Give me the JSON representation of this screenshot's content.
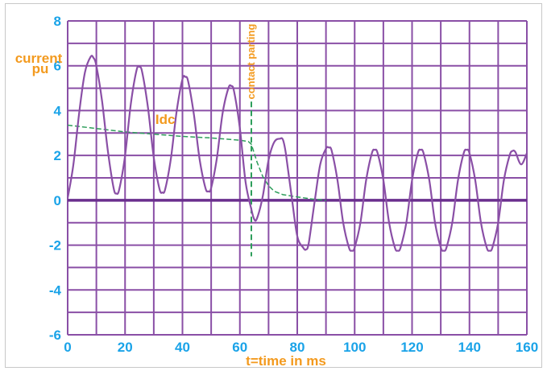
{
  "chart_data": {
    "type": "line",
    "xlabel": "t=time in ms",
    "ylabel_line1": "current",
    "ylabel_line2": "pu",
    "xlim": [
      0,
      160
    ],
    "ylim": [
      -6,
      8
    ],
    "x_ticks": [
      0,
      20,
      40,
      60,
      80,
      100,
      120,
      140,
      160
    ],
    "y_ticks": [
      -6,
      -4,
      -2,
      0,
      2,
      4,
      6,
      8
    ],
    "grid": true,
    "annotations": [
      {
        "text": "Idc",
        "at": [
          30,
          3.4
        ]
      },
      {
        "text": "contact parting",
        "at": [
          64,
          4.5
        ]
      }
    ],
    "contact_parting_ms": 64,
    "series": [
      {
        "name": "Idc",
        "style": "dashed",
        "x": [
          0,
          10,
          20,
          30,
          40,
          50,
          60,
          63,
          64,
          66,
          68,
          70,
          72,
          75,
          80,
          85,
          88,
          90
        ],
        "y": [
          3.35,
          3.2,
          3.05,
          2.95,
          2.85,
          2.78,
          2.68,
          2.62,
          2.5,
          1.7,
          1.05,
          0.65,
          0.4,
          0.25,
          0.15,
          0.06,
          0.02,
          0
        ]
      },
      {
        "style": "solid",
        "x": [
          0,
          2,
          4,
          6,
          8,
          9,
          10,
          12,
          14,
          16,
          17,
          18,
          20,
          22,
          24,
          25,
          26,
          28,
          30,
          32,
          33,
          34,
          36,
          38,
          40,
          41,
          42,
          44,
          46,
          48,
          49,
          50,
          52,
          54,
          56,
          57,
          58,
          60,
          62,
          64,
          65,
          66,
          68,
          70,
          72,
          74,
          75,
          76,
          78,
          80,
          82,
          83,
          84,
          86,
          88,
          90,
          91,
          92,
          94,
          96,
          98,
          99,
          100,
          102,
          104,
          106,
          107,
          108,
          110,
          112,
          114,
          115,
          116,
          118,
          120,
          122,
          123,
          124,
          126,
          128,
          130,
          131,
          132,
          134,
          136,
          138,
          139,
          140,
          142,
          144,
          146,
          147,
          148,
          150,
          152,
          154,
          155,
          156,
          158,
          160
        ],
        "y": [
          0.1,
          1.6,
          3.9,
          5.7,
          6.4,
          6.35,
          6.0,
          4.4,
          2.2,
          0.55,
          0.3,
          0.5,
          2.0,
          4.3,
          5.8,
          5.95,
          5.7,
          4.1,
          1.9,
          0.5,
          0.35,
          0.5,
          1.9,
          4.0,
          5.4,
          5.5,
          5.3,
          3.8,
          1.8,
          0.55,
          0.4,
          0.55,
          1.9,
          3.9,
          5.0,
          5.1,
          4.85,
          3.2,
          0.8,
          -0.4,
          -0.85,
          -0.8,
          0.2,
          1.8,
          2.6,
          2.75,
          2.7,
          2.1,
          0.2,
          -1.6,
          -2.1,
          -2.2,
          -1.9,
          -0.1,
          1.6,
          2.3,
          2.35,
          2.2,
          0.9,
          -1.0,
          -2.1,
          -2.25,
          -2.1,
          -1.0,
          0.9,
          2.1,
          2.25,
          2.1,
          0.9,
          -1.0,
          -2.1,
          -2.25,
          -2.1,
          -1.0,
          0.9,
          2.1,
          2.25,
          2.1,
          0.9,
          -1.0,
          -2.1,
          -2.25,
          -2.1,
          -1.0,
          0.9,
          2.1,
          2.25,
          2.1,
          0.9,
          -1.0,
          -2.1,
          -2.25,
          -2.1,
          -1.0,
          0.9,
          2.0,
          2.2,
          2.15,
          1.6,
          2.1
        ]
      }
    ]
  },
  "colors": {
    "grid": "#8a4fa6",
    "curve": "#8a4fa6",
    "zero_axis": "#6a2f8e",
    "ticks": "#1aa3e8",
    "labels": "#f39a1e",
    "idc": "#2e9e5b"
  }
}
